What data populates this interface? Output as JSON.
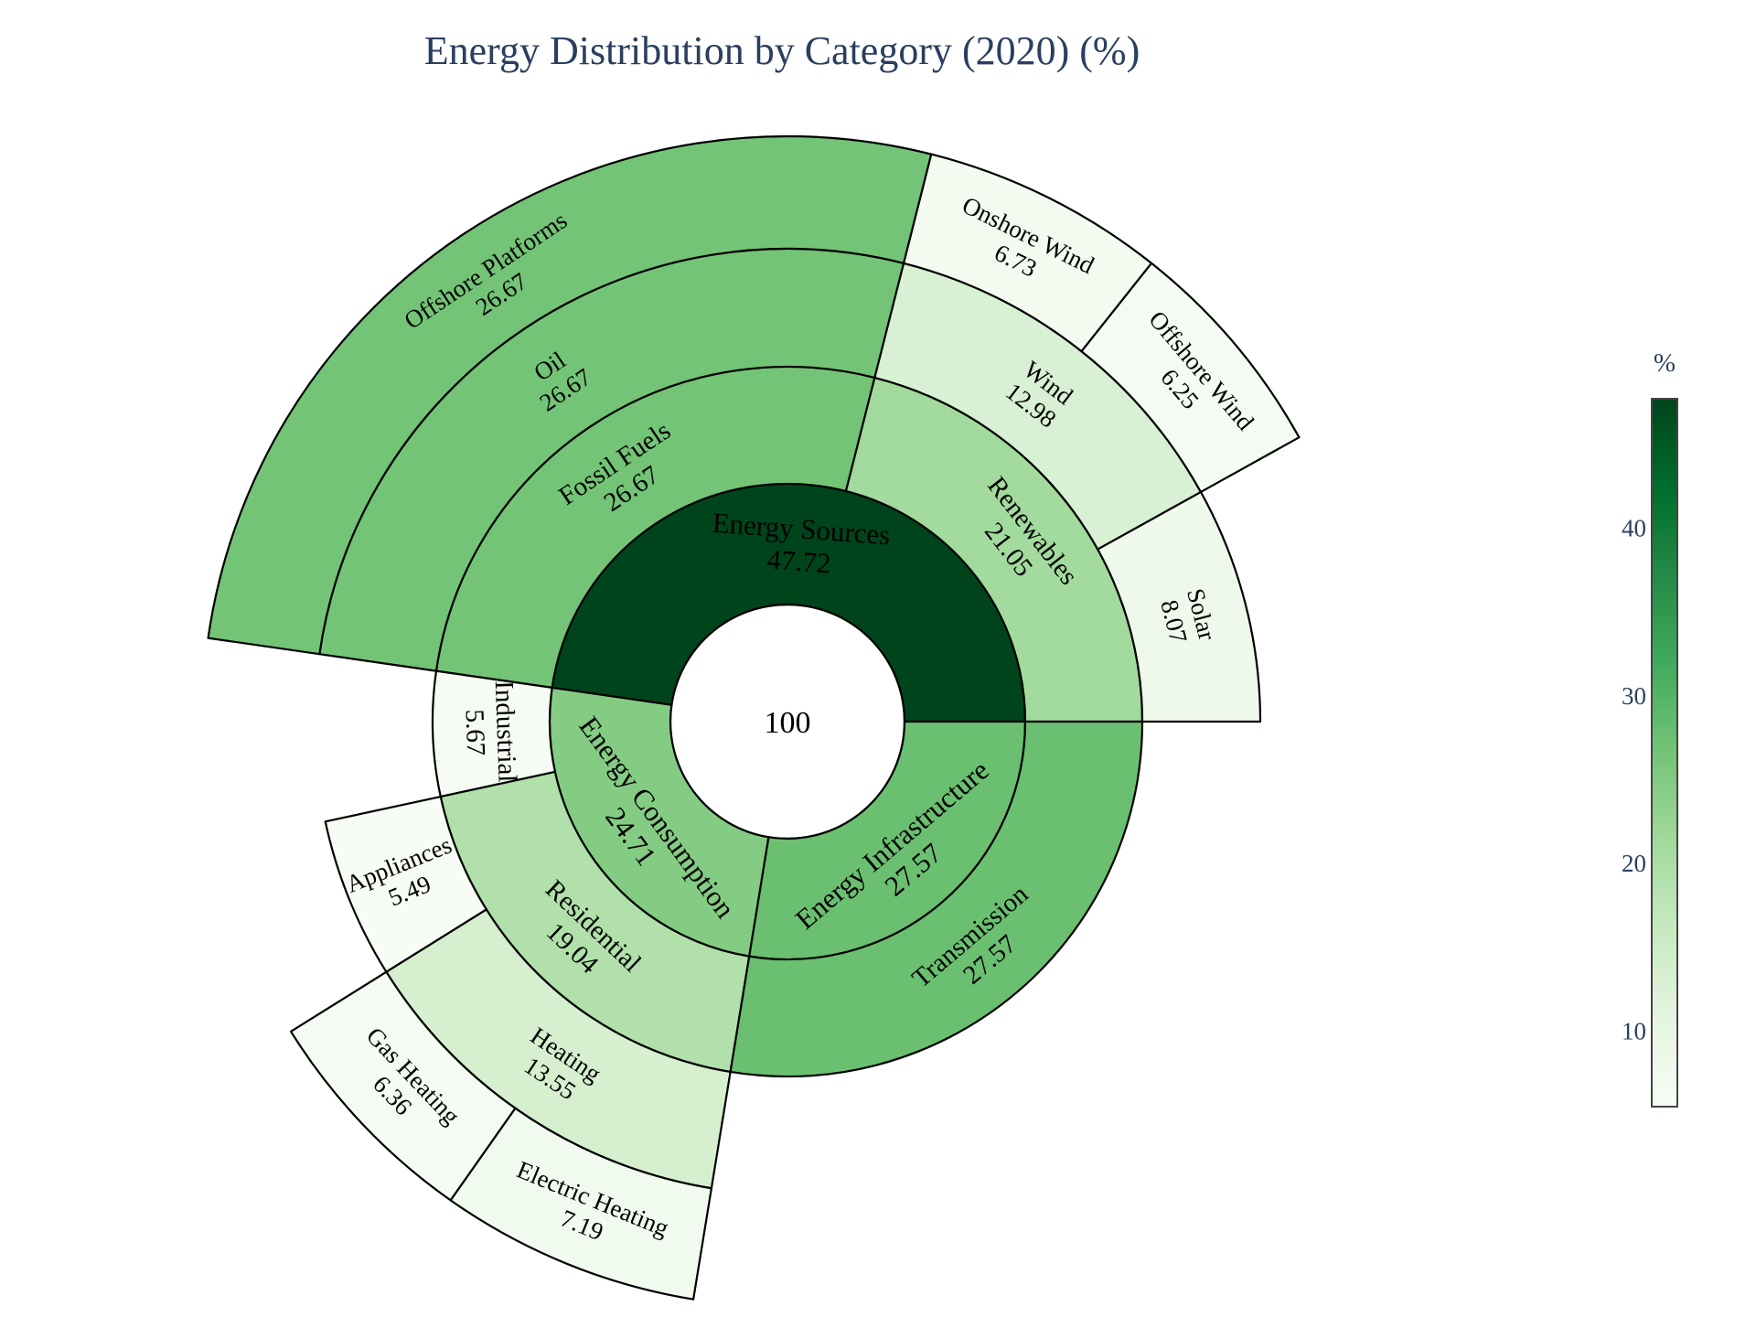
{
  "chart_data": {
    "type": "sunburst",
    "title": "Energy Distribution by Category (2020) (%)",
    "root": {
      "label": "",
      "value": 100
    },
    "nodes": [
      {
        "id": "sources",
        "label": "Energy Sources",
        "parent": "root",
        "value": 47.72
      },
      {
        "id": "renewables",
        "label": "Renewables",
        "parent": "sources",
        "value": 21.05
      },
      {
        "id": "solar",
        "label": "Solar",
        "parent": "renewables",
        "value": 8.07
      },
      {
        "id": "wind",
        "label": "Wind",
        "parent": "renewables",
        "value": 12.98
      },
      {
        "id": "offshore-wind",
        "label": "Offshore Wind",
        "parent": "wind",
        "value": 6.25
      },
      {
        "id": "onshore-wind",
        "label": "Onshore Wind",
        "parent": "wind",
        "value": 6.73
      },
      {
        "id": "fossil",
        "label": "Fossil Fuels",
        "parent": "sources",
        "value": 26.67
      },
      {
        "id": "oil",
        "label": "Oil",
        "parent": "fossil",
        "value": 26.67
      },
      {
        "id": "offshore-platforms",
        "label": "Offshore Platforms",
        "parent": "oil",
        "value": 26.67
      },
      {
        "id": "consumption",
        "label": "Energy Consumption",
        "parent": "root",
        "value": 24.71
      },
      {
        "id": "industrial",
        "label": "Industrial",
        "parent": "consumption",
        "value": 5.67
      },
      {
        "id": "residential",
        "label": "Residential",
        "parent": "consumption",
        "value": 19.04
      },
      {
        "id": "appliances",
        "label": "Appliances",
        "parent": "residential",
        "value": 5.49
      },
      {
        "id": "heating",
        "label": "Heating",
        "parent": "residential",
        "value": 13.55
      },
      {
        "id": "gas-heating",
        "label": "Gas Heating",
        "parent": "heating",
        "value": 6.36
      },
      {
        "id": "electric-heating",
        "label": "Electric Heating",
        "parent": "heating",
        "value": 7.19
      },
      {
        "id": "infrastructure",
        "label": "Energy Infrastructure",
        "parent": "root",
        "value": 27.57
      },
      {
        "id": "transmission",
        "label": "Transmission",
        "parent": "infrastructure",
        "value": 27.57
      }
    ],
    "colorscale": "Greens",
    "colorbar": {
      "title": "%",
      "range": [
        5.49,
        47.72
      ],
      "ticks": [
        10,
        20,
        30,
        40
      ]
    }
  }
}
